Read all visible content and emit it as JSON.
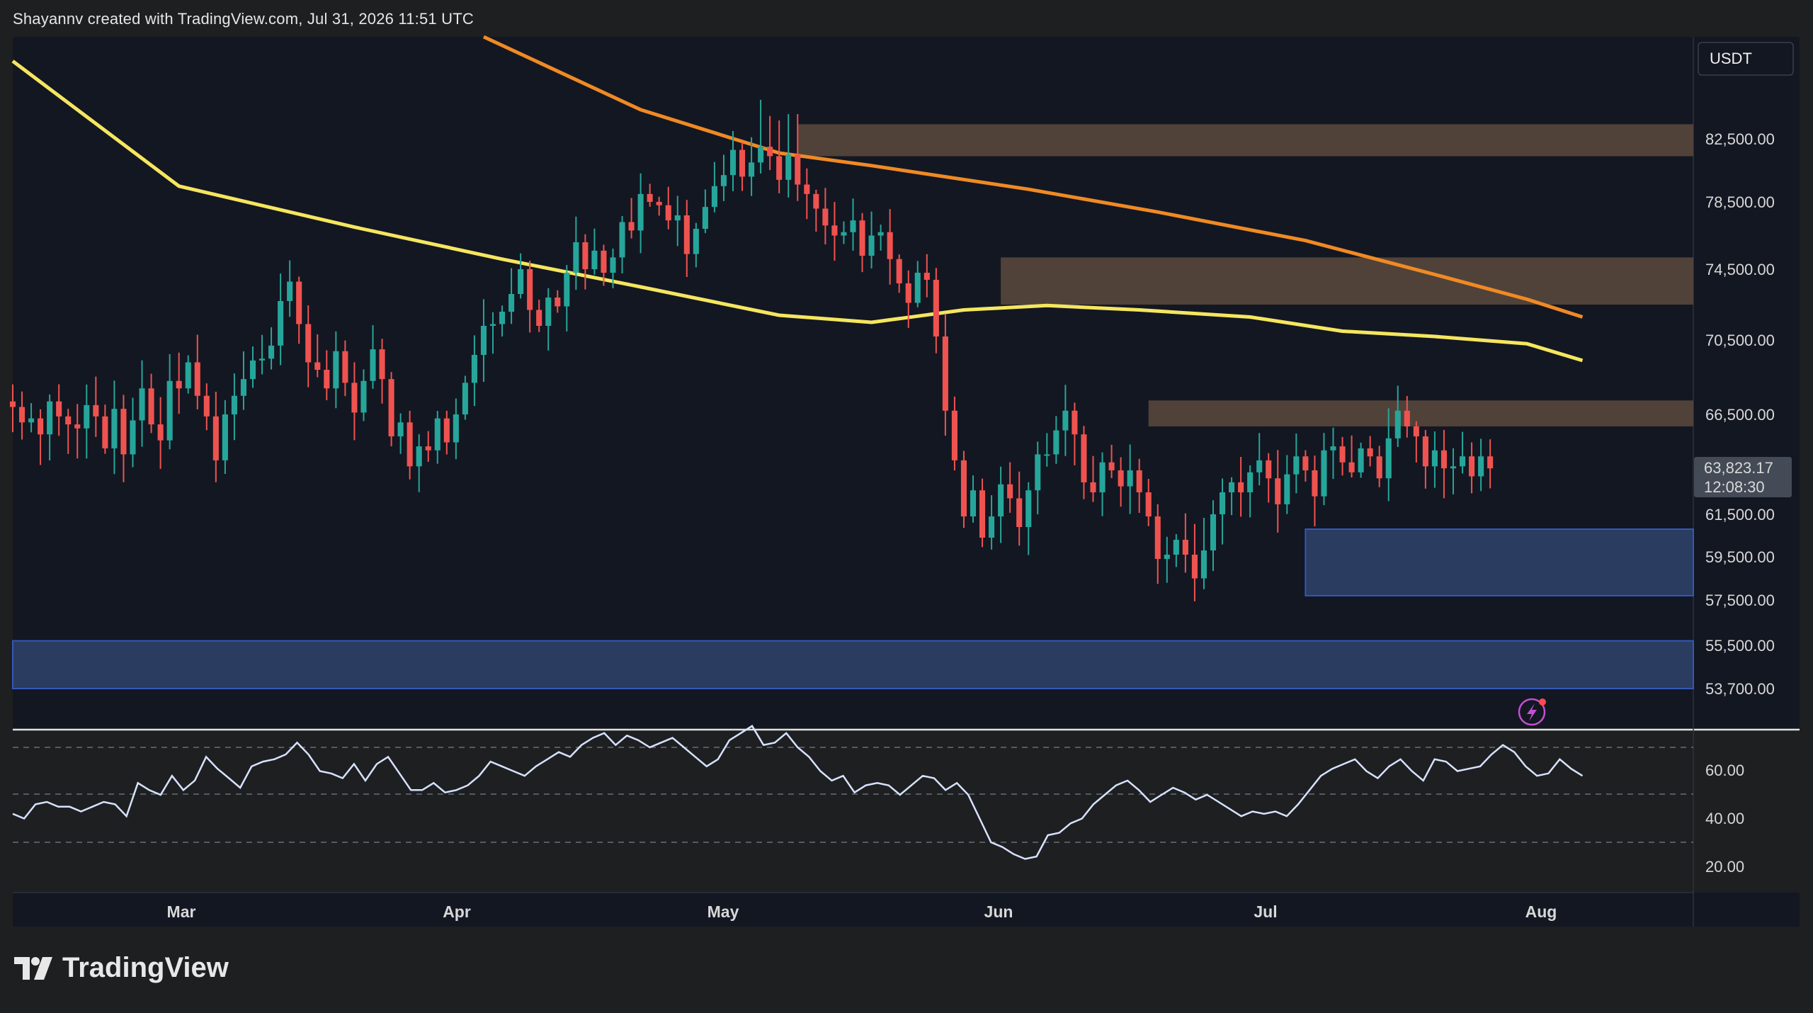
{
  "header": {
    "text": "Shayannv created with TradingView.com, Jul 31, 2026 11:51 UTC"
  },
  "brand": {
    "name": "TradingView"
  },
  "currency": "USDT",
  "price_axis": {
    "ticks": [
      "82,500.00",
      "78,500.00",
      "74,500.00",
      "70,500.00",
      "66,500.00",
      "61,500.00",
      "59,500.00",
      "57,500.00",
      "55,500.00",
      "53,700.00"
    ],
    "current_price": "63,823.17",
    "countdown": "12:08:30"
  },
  "time_axis": {
    "labels": [
      "Mar",
      "Apr",
      "May",
      "Jun",
      "Jul",
      "Aug"
    ]
  },
  "colors": {
    "background": "#131722",
    "up": "#26a69a",
    "down": "#ef5350",
    "ma_fast": "#f5e65f",
    "ma_slow": "#f08a24",
    "supply_zone": "#5c4a3d",
    "demand_zone": "#2e4066",
    "rsi_line": "#d6e2ff"
  },
  "chart_data": [
    {
      "type": "candlestick",
      "title": "",
      "currency": "USDT",
      "x_range": [
        "Feb 11",
        "Aug 12"
      ],
      "ylim": [
        52100,
        84600
      ],
      "series": [
        {
          "name": "",
          "kind": "moving-average",
          "color": "#f5e65f",
          "points": [
            [
              "Feb 11",
              84100
            ],
            [
              "Mar 1",
              79500
            ],
            [
              "Mar 20",
              77000
            ],
            [
              "Apr 5",
              75100
            ],
            [
              "Apr 20",
              73500
            ],
            [
              "May 5",
              71900
            ],
            [
              "May 15",
              71500
            ],
            [
              "May 25",
              72200
            ],
            [
              "Jun 3",
              72450
            ],
            [
              "Jun 13",
              72200
            ],
            [
              "Jun 25",
              71800
            ],
            [
              "Jul 5",
              71000
            ],
            [
              "Jul 15",
              70700
            ],
            [
              "Jul 25",
              70300
            ],
            [
              "Jul 31",
              69400
            ]
          ]
        },
        {
          "name": "",
          "kind": "moving-average",
          "color": "#f08a24",
          "points": [
            [
              "Apr 3",
              84600
            ],
            [
              "Apr 20",
              83100
            ],
            [
              "May 5",
              81600
            ],
            [
              "May 15",
              80800
            ],
            [
              "Jun 1",
              79300
            ],
            [
              "Jun 15",
              77900
            ],
            [
              "Jul 1",
              76200
            ],
            [
              "Jul 15",
              74200
            ],
            [
              "Jul 25",
              72800
            ],
            [
              "Jul 31",
              71800
            ]
          ]
        }
      ],
      "zones": [
        {
          "kind": "supply",
          "from": "May 7",
          "to": "Aug 12",
          "low": 81400,
          "high": 82800
        },
        {
          "kind": "supply",
          "from": "May 29",
          "to": "Aug 12",
          "low": 72500,
          "high": 75200
        },
        {
          "kind": "supply",
          "from": "Jun 14",
          "to": "Aug 12",
          "low": 65900,
          "high": 67250
        },
        {
          "kind": "demand",
          "from": "Jul 1",
          "to": "Aug 12",
          "low": 57700,
          "high": 60800
        },
        {
          "kind": "demand",
          "from": "Feb 11",
          "to": "Aug 12",
          "low": 53700,
          "high": 55700
        }
      ],
      "candles_close": [
        66900,
        66100,
        66300,
        65500,
        67200,
        66400,
        66000,
        65800,
        67000,
        66400,
        64800,
        66800,
        64500,
        66200,
        67900,
        66000,
        65200,
        68300,
        67900,
        69300,
        67500,
        66400,
        64200,
        66500,
        67500,
        68400,
        69400,
        69500,
        70200,
        72700,
        73800,
        71400,
        69300,
        68900,
        67900,
        69900,
        68200,
        66600,
        68300,
        70000,
        68400,
        65400,
        66100,
        63900,
        64900,
        64700,
        66300,
        65100,
        66500,
        68200,
        69700,
        71300,
        71400,
        72100,
        73100,
        74500,
        72200,
        71300,
        72900,
        72400,
        74300,
        76100,
        74500,
        75600,
        74300,
        75200,
        77300,
        76800,
        79000,
        78500,
        78300,
        77400,
        77700,
        75400,
        76900,
        78200,
        79500,
        80200,
        81800,
        80100,
        81000,
        82000,
        81400,
        79900,
        81500,
        79600,
        79000,
        78100,
        77100,
        76500,
        76700,
        77400,
        75300,
        76500,
        76700,
        75100,
        73700,
        72600,
        74300,
        73900,
        70700,
        66700,
        64200,
        61400,
        62700,
        60400,
        61400,
        63000,
        62300,
        60900,
        62700,
        64500,
        64500,
        65700,
        66700,
        65500,
        63100,
        62600,
        64100,
        63700,
        62900,
        63700,
        62600,
        61400,
        59400,
        59600,
        60300,
        59600,
        58500,
        59800,
        61500,
        62600,
        63100,
        62600,
        63600,
        64200,
        63300,
        62000,
        63500,
        64400,
        63700,
        62400,
        64700,
        64900,
        64100,
        63600,
        64800,
        64400,
        63300,
        65300,
        66700,
        65900,
        65400,
        63900,
        64700,
        63800,
        63900,
        64400,
        63400,
        64400,
        63800
      ]
    },
    {
      "type": "line",
      "title": "",
      "ylim": [
        10,
        72
      ],
      "ticks": [
        "60.00",
        "40.00",
        "20.00"
      ],
      "y": [
        32,
        30,
        36,
        37,
        35,
        35,
        33,
        35,
        37,
        36,
        31,
        45,
        42,
        40,
        48,
        42,
        46,
        56,
        51,
        47,
        43,
        52,
        54,
        55,
        57,
        62,
        57,
        50,
        49,
        47,
        53,
        46,
        53,
        56,
        49,
        42,
        42,
        45,
        41,
        42,
        44,
        48,
        54,
        52,
        50,
        48,
        52,
        55,
        58,
        56,
        61,
        64,
        66,
        61,
        65,
        63,
        60,
        62,
        64,
        60,
        56,
        52,
        55,
        63,
        66,
        69,
        61,
        62,
        66,
        60,
        56,
        50,
        46,
        48,
        41,
        44,
        45,
        44,
        40,
        44,
        48,
        47,
        42,
        45,
        40,
        30,
        20,
        18,
        15,
        13,
        14,
        23,
        24,
        28,
        30,
        36,
        40,
        44,
        46,
        42,
        37,
        40,
        43,
        41,
        38,
        40,
        37,
        34,
        31,
        33,
        32,
        33,
        31,
        36,
        42,
        48,
        51,
        53,
        55,
        50,
        47,
        52,
        55,
        50,
        46,
        55,
        54,
        50,
        51,
        52,
        57,
        61,
        58,
        52,
        48,
        49,
        55,
        51,
        48
      ]
    }
  ]
}
